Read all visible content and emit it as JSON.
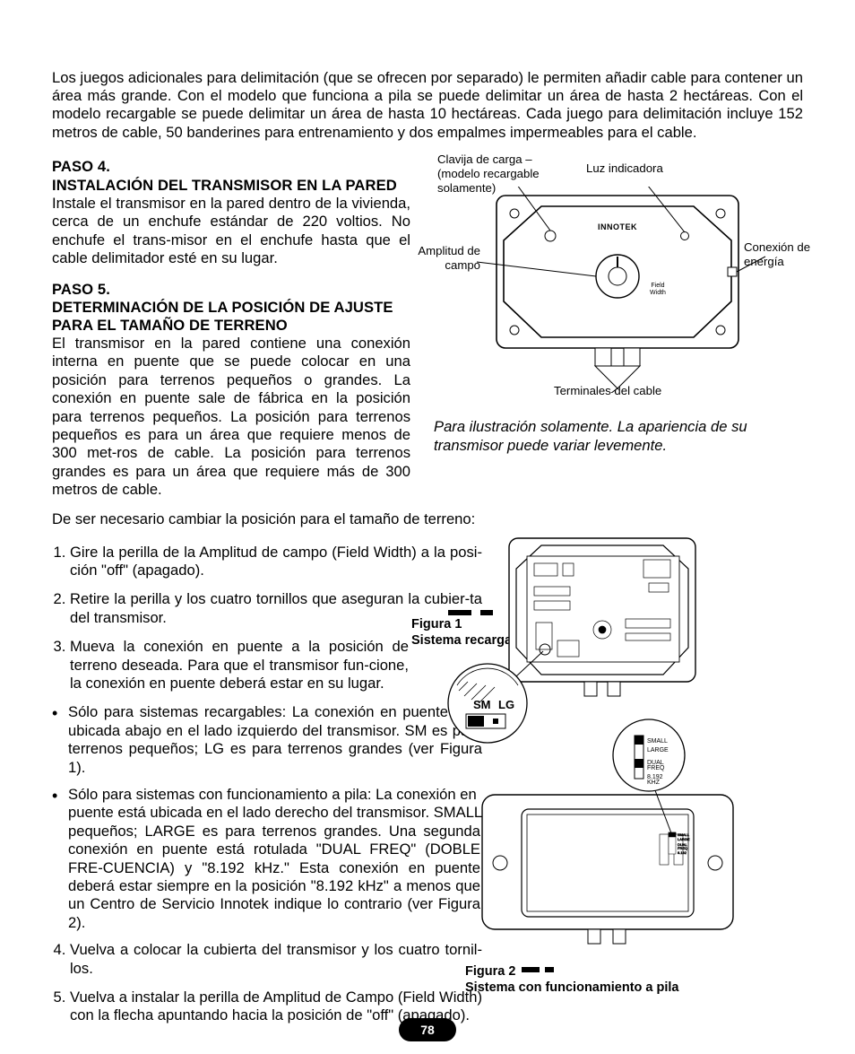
{
  "intro": "Los juegos adicionales para delimitación (que se ofrecen por separado) le permiten añadir cable para contener un área más grande. Con el modelo que funciona a pila se puede delimitar un área de hasta 2 hectáreas. Con el modelo recargable se puede delimitar un área de hasta 10 hectáreas.  Cada juego para delimitación incluye 152 metros de cable, 50 banderines para entrenamiento y dos empalmes impermeables para el cable.",
  "paso4": {
    "title_a": "PASO 4.",
    "title_b": "INSTALACIÓN DEL TRANSMISOR EN LA PARED",
    "body": "Instale el transmisor en la pared dentro de la vivienda, cerca de un enchufe estándar de 220 voltios. No enchufe el trans-misor en el enchufe hasta que el cable delimitador esté en su lugar."
  },
  "paso5": {
    "title_a": "PASO 5.",
    "title_b": "DETERMINACIÓN DE LA POSICIÓN DE AJUSTE PARA EL TAMAÑO DE TERRENO",
    "body": "El transmisor en la pared contiene una conexión interna en puente que se puede colocar en una posición para terrenos pequeños o grandes. La conexión en puente sale de fábrica en la posición para terrenos pequeños. La posición para terrenos pequeños es para un área que requiere menos de 300 met-ros de cable. La posición para terrenos grandes es para un área que requiere más de 300 metros de cable."
  },
  "change_line": "De ser necesario cambiar la posición para el tamaño de terreno:",
  "steps": [
    "Gire la perilla de la Amplitud de campo (Field Width) a la posi-ción \"off\" (apagado).",
    "Retire la perilla y los cuatro tornillos que aseguran la cubier-ta del transmisor.",
    "Mueva la conexión en puente a la posición de terreno deseada. Para que el transmisor fun-cione, la conexión en puente deberá estar en su lugar.",
    "Vuelva a colocar la cubierta del transmisor y los cuatro tornil-los.",
    "Vuelva a instalar la perilla de Amplitud de Campo (Field Width) con la flecha apuntando hacia la posición de \"off\" (apagado)."
  ],
  "sub": [
    "Sólo para sistemas recargables: La conexión en puente está ubicada abajo en el lado izquierdo del transmisor. SM es para terrenos pequeños; LG es para terrenos grandes (ver Figura 1).",
    "Sólo para sistemas con funcionamiento a pila: La conexión en puente está ubicada en el lado derecho del transmisor. SMALL es para terrenos pequeños; LARGE es para terrenos grandes. Una segunda conexión en puente está rotulada \"DUAL FREQ\" (DOBLE FRE-CUENCIA) y \"8.192 kHz.\" Esta conexión en puente deberá estar siempre en la posición \"8.192 kHz\" a menos que un Centro de Servicio Innotek indique lo contrario (ver Figura 2)."
  ],
  "callouts": {
    "clavija": "Clavija de carga – (modelo recargable solamente)",
    "luz": "Luz indicadora",
    "amplitud": "Amplitud de campo",
    "conexion": "Conexión de energía",
    "terminales": "Terminales del cable",
    "fieldwidth": "Field Width",
    "brand": "INNOTEK"
  },
  "italic_note": "Para ilustración solamente. La apariencia de su transmisor puede variar levemente.",
  "fig1_a": "Figura 1",
  "fig1_b": "Sistema recargable",
  "fig2_a": "Figura 2",
  "fig2_b": "Sistema con funcionamiento a pila",
  "labels_small": {
    "sm": "SM",
    "lg": "LG",
    "small": "SMALL",
    "large": "LARGE",
    "dual": "DUAL FREQ",
    "khz": "8.192 KHZ"
  },
  "page_num": "78",
  "colors": {
    "text": "#000000",
    "bg": "#ffffff",
    "badge": "#000000"
  }
}
